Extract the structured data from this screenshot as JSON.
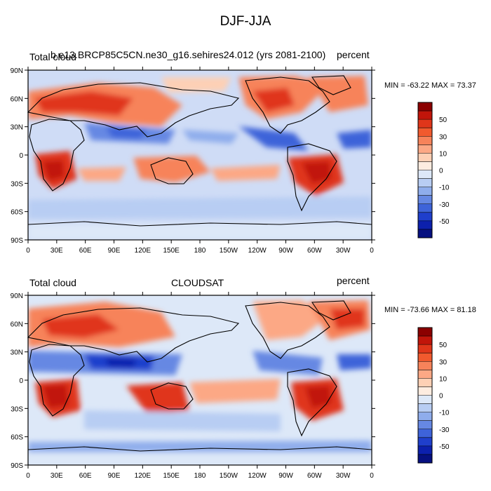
{
  "title": "DJF-JJA",
  "x_ticks": [
    "0",
    "30E",
    "60E",
    "90E",
    "120E",
    "150E",
    "180",
    "150W",
    "120W",
    "90W",
    "60W",
    "30W",
    "0"
  ],
  "y_ticks": [
    "90N",
    "60N",
    "30N",
    "0",
    "30S",
    "60S",
    "90S"
  ],
  "colorbar_labels": [
    "50",
    "30",
    "10",
    "0",
    "-10",
    "-30",
    "-50"
  ],
  "colorbar_colors": [
    "#8b0000",
    "#c1150a",
    "#e0361a",
    "#f15a2e",
    "#f7835a",
    "#fca885",
    "#fdd0b5",
    "#fdece0",
    "#dde8f8",
    "#b8cdf3",
    "#8fadec",
    "#6688e3",
    "#3e63d9",
    "#1f3fcc",
    "#0c20ad",
    "#061080"
  ],
  "panels": [
    {
      "left_label": "Total cloud",
      "center_label": "b.e13.BRCP85C5CN.ne30_g16.sehires24.012 (yrs 2081-2100)",
      "right_label": "percent",
      "stats": "MIN = -63.22 MAX =  73.37"
    },
    {
      "left_label": "Total cloud",
      "center_label": "CLOUDSAT",
      "right_label": "percent",
      "stats": "MIN = -73.66 MAX =  81.18"
    }
  ]
}
